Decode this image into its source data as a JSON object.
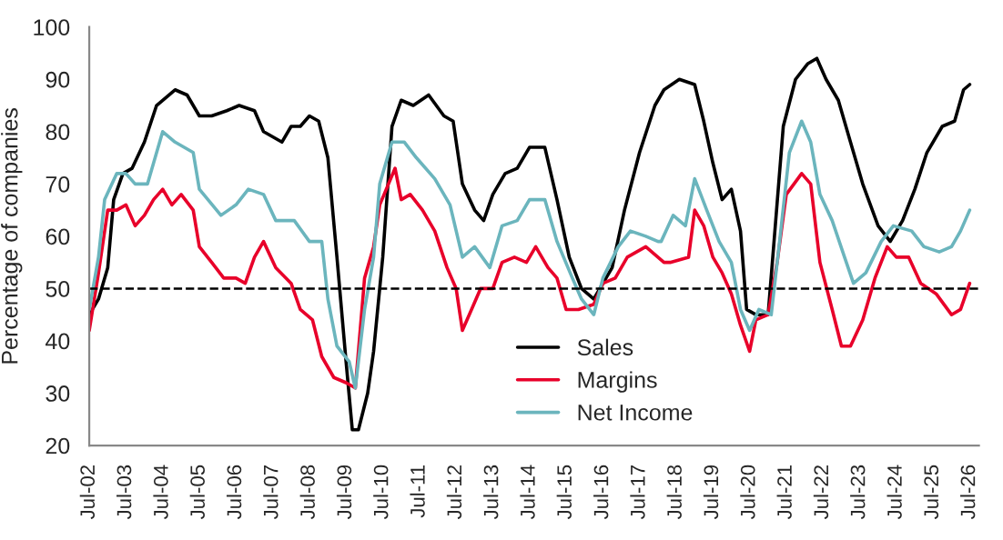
{
  "chart_data": {
    "type": "line",
    "ylabel": "Percentage of companies",
    "xlim": [
      "2002-07",
      "2026-10"
    ],
    "ylim": [
      20,
      100
    ],
    "yticks": [
      20,
      30,
      40,
      50,
      60,
      70,
      80,
      90,
      100
    ],
    "xticks": [
      {
        "value": "2002-07",
        "label": "Jul-02"
      },
      {
        "value": "2003-07",
        "label": "Jul-03"
      },
      {
        "value": "2004-07",
        "label": "Jul-04"
      },
      {
        "value": "2005-07",
        "label": "Jul-05"
      },
      {
        "value": "2006-07",
        "label": "Jul-06"
      },
      {
        "value": "2007-07",
        "label": "Jul-07"
      },
      {
        "value": "2008-07",
        "label": "Jul-08"
      },
      {
        "value": "2009-07",
        "label": "Jul-09"
      },
      {
        "value": "2010-07",
        "label": "Jul-10"
      },
      {
        "value": "2011-07",
        "label": "Jul-11"
      },
      {
        "value": "2012-07",
        "label": "Jul-12"
      },
      {
        "value": "2013-07",
        "label": "Jul-13"
      },
      {
        "value": "2014-07",
        "label": "Jul-14"
      },
      {
        "value": "2015-07",
        "label": "Jul-15"
      },
      {
        "value": "2016-07",
        "label": "Jul-16"
      },
      {
        "value": "2017-07",
        "label": "Jul-17"
      },
      {
        "value": "2018-07",
        "label": "Jul-18"
      },
      {
        "value": "2019-07",
        "label": "Jul-19"
      },
      {
        "value": "2020-07",
        "label": "Jul-20"
      },
      {
        "value": "2021-07",
        "label": "Jul-21"
      },
      {
        "value": "2022-07",
        "label": "Jul-22"
      },
      {
        "value": "2023-07",
        "label": "Jul-23"
      },
      {
        "value": "2024-07",
        "label": "Jul-24"
      },
      {
        "value": "2025-07",
        "label": "Jul-25"
      },
      {
        "value": "2026-07",
        "label": "Jul-26"
      }
    ],
    "grid": false,
    "legend": "bottom",
    "marker": "none",
    "line_style": "solid",
    "ref_lines": [
      {
        "axis": "y",
        "value": 50,
        "color": "#000000",
        "line_style": "dashed"
      }
    ],
    "series": [
      {
        "name": "Sales",
        "color": "#000000",
        "x": [
          "2002-07",
          "2002-10",
          "2003-01",
          "2003-03",
          "2003-06",
          "2003-09",
          "2004-01",
          "2004-05",
          "2004-11",
          "2005-03",
          "2005-07",
          "2005-11",
          "2006-04",
          "2006-08",
          "2007-01",
          "2007-04",
          "2007-10",
          "2008-01",
          "2008-04",
          "2008-07",
          "2008-10",
          "2009-01",
          "2009-04",
          "2009-07",
          "2009-09",
          "2009-11",
          "2010-02",
          "2010-04",
          "2010-07",
          "2010-10",
          "2011-01",
          "2011-05",
          "2011-10",
          "2012-03",
          "2012-06",
          "2012-09",
          "2013-01",
          "2013-04",
          "2013-07",
          "2013-11",
          "2014-03",
          "2014-07",
          "2014-12",
          "2015-04",
          "2015-08",
          "2015-12",
          "2016-04",
          "2016-10",
          "2017-02",
          "2017-07",
          "2017-12",
          "2018-03",
          "2018-08",
          "2019-01",
          "2019-04",
          "2019-07",
          "2019-10",
          "2020-01",
          "2020-04",
          "2020-06",
          "2020-09",
          "2021-01",
          "2021-03",
          "2021-06",
          "2021-10",
          "2022-02",
          "2022-05",
          "2022-08",
          "2022-12",
          "2023-04",
          "2023-08",
          "2024-01",
          "2024-05",
          "2024-09",
          "2025-01",
          "2025-05",
          "2025-10",
          "2026-02",
          "2026-05",
          "2026-07"
        ],
        "values": [
          45,
          48,
          54,
          67,
          72,
          73,
          78,
          85,
          88,
          87,
          83,
          83,
          84,
          85,
          84,
          80,
          78,
          81,
          81,
          83,
          82,
          75,
          56,
          36,
          23,
          23,
          30,
          38,
          56,
          81,
          86,
          85,
          87,
          83,
          82,
          70,
          65,
          63,
          68,
          72,
          73,
          77,
          77,
          67,
          56,
          50,
          48,
          54,
          65,
          76,
          85,
          88,
          90,
          89,
          82,
          74,
          67,
          69,
          61,
          46,
          45,
          45,
          59,
          81,
          90,
          93,
          94,
          90,
          86,
          78,
          70,
          62,
          59,
          63,
          69,
          76,
          81,
          82,
          88,
          89
        ]
      },
      {
        "name": "Margins",
        "color": "#e8002a",
        "x": [
          "2002-07",
          "2002-10",
          "2003-01",
          "2003-04",
          "2003-07",
          "2003-10",
          "2004-01",
          "2004-04",
          "2004-07",
          "2004-10",
          "2005-01",
          "2005-05",
          "2005-07",
          "2005-11",
          "2006-03",
          "2006-07",
          "2006-10",
          "2007-01",
          "2007-04",
          "2007-08",
          "2008-01",
          "2008-04",
          "2008-08",
          "2008-11",
          "2009-03",
          "2009-07",
          "2009-10",
          "2010-01",
          "2010-04",
          "2010-06",
          "2010-11",
          "2011-01",
          "2011-04",
          "2011-08",
          "2011-12",
          "2012-04",
          "2012-07",
          "2012-09",
          "2012-12",
          "2013-03",
          "2013-07",
          "2013-10",
          "2014-02",
          "2014-06",
          "2014-09",
          "2015-01",
          "2015-04",
          "2015-07",
          "2015-11",
          "2016-04",
          "2016-07",
          "2016-11",
          "2017-03",
          "2017-09",
          "2018-03",
          "2018-05",
          "2018-11",
          "2019-01",
          "2019-04",
          "2019-07",
          "2019-10",
          "2020-01",
          "2020-04",
          "2020-07",
          "2020-09",
          "2021-01",
          "2021-04",
          "2021-07",
          "2021-12",
          "2022-03",
          "2022-06",
          "2022-10",
          "2023-01",
          "2023-04",
          "2023-08",
          "2023-12",
          "2024-04",
          "2024-07",
          "2024-11",
          "2025-03",
          "2025-08",
          "2026-01",
          "2026-04",
          "2026-07"
        ],
        "values": [
          42,
          53,
          65,
          65,
          66,
          62,
          64,
          67,
          69,
          66,
          68,
          65,
          58,
          55,
          52,
          52,
          51,
          56,
          59,
          54,
          51,
          46,
          44,
          37,
          33,
          32,
          31,
          52,
          58,
          66,
          73,
          67,
          68,
          65,
          61,
          54,
          50,
          42,
          46,
          50,
          50,
          55,
          56,
          55,
          58,
          54,
          52,
          46,
          46,
          47,
          51,
          52,
          56,
          58,
          55,
          55,
          56,
          65,
          62,
          56,
          53,
          49,
          43,
          38,
          44,
          45,
          55,
          68,
          72,
          70,
          55,
          46,
          39,
          39,
          44,
          52,
          58,
          56,
          56,
          51,
          49,
          45,
          46,
          51
        ]
      },
      {
        "name": "Net Income",
        "color": "#6bb5bd",
        "x": [
          "2002-07",
          "2002-10",
          "2002-12",
          "2003-04",
          "2003-07",
          "2003-10",
          "2004-02",
          "2004-07",
          "2004-11",
          "2005-05",
          "2005-07",
          "2006-02",
          "2006-07",
          "2006-11",
          "2007-04",
          "2007-08",
          "2008-02",
          "2008-07",
          "2008-11",
          "2009-01",
          "2009-04",
          "2009-08",
          "2009-10",
          "2010-01",
          "2010-04",
          "2010-06",
          "2010-10",
          "2011-02",
          "2011-06",
          "2011-12",
          "2012-05",
          "2012-09",
          "2013-01",
          "2013-06",
          "2013-10",
          "2014-03",
          "2014-07",
          "2014-12",
          "2015-04",
          "2015-09",
          "2015-12",
          "2016-04",
          "2016-07",
          "2016-12",
          "2017-04",
          "2017-09",
          "2018-01",
          "2018-02",
          "2018-06",
          "2018-10",
          "2019-01",
          "2019-05",
          "2019-09",
          "2020-01",
          "2020-04",
          "2020-07",
          "2020-10",
          "2021-02",
          "2021-05",
          "2021-08",
          "2021-12",
          "2022-03",
          "2022-06",
          "2022-10",
          "2023-02",
          "2023-05",
          "2023-09",
          "2024-02",
          "2024-06",
          "2024-12",
          "2025-04",
          "2025-09",
          "2026-01",
          "2026-04",
          "2026-07"
        ],
        "values": [
          46,
          56,
          67,
          72,
          72,
          70,
          70,
          80,
          78,
          76,
          69,
          64,
          66,
          69,
          68,
          63,
          63,
          59,
          59,
          48,
          39,
          36,
          31,
          46,
          56,
          70,
          78,
          78,
          75,
          71,
          66,
          56,
          58,
          54,
          62,
          63,
          67,
          67,
          59,
          52,
          48,
          45,
          52,
          58,
          61,
          60,
          59,
          59,
          64,
          62,
          71,
          65,
          59,
          55,
          46,
          42,
          46,
          45,
          60,
          76,
          82,
          78,
          68,
          63,
          56,
          51,
          53,
          59,
          62,
          61,
          58,
          57,
          58,
          61,
          65
        ]
      }
    ]
  }
}
